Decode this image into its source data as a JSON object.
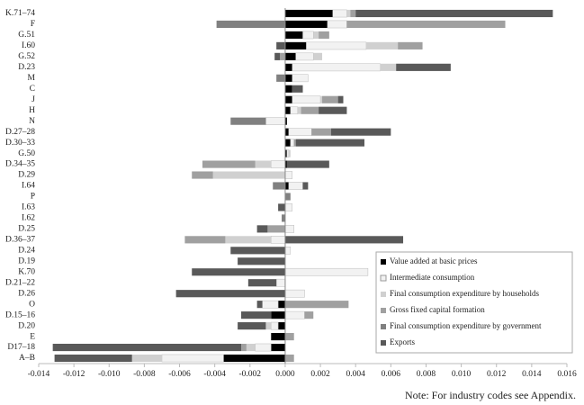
{
  "chart_data": {
    "type": "bar",
    "orientation": "horizontal",
    "stacked": true,
    "categories": [
      "K.71–74",
      "F",
      "G.51",
      "I.60",
      "G.52",
      "D.23",
      "M",
      "C",
      "J",
      "H",
      "N",
      "D.27–28",
      "D.30–33",
      "G.50",
      "D.34–35",
      "D.29",
      "I.64",
      "P",
      "I.63",
      "I.62",
      "D.25",
      "D.36–37",
      "D.24",
      "D.19",
      "K.70",
      "D.21–22",
      "D.26",
      "O",
      "D.15–16",
      "D.20",
      "E",
      "D17–18",
      "A–B"
    ],
    "series": [
      {
        "name": "Value added at basic prices",
        "color": "#000000",
        "values": [
          0.0027,
          0.0024,
          0.001,
          0.0012,
          0.0006,
          0.0004,
          0.0004,
          0.0004,
          0.0004,
          0.0003,
          0.0001,
          0.0002,
          0.0003,
          0.0001,
          0.0001,
          0,
          0.0002,
          0,
          0,
          0,
          0,
          0,
          0,
          0,
          0,
          0,
          0,
          -0.0004,
          -0.0008,
          -0.0004,
          -0.0008,
          -0.0008,
          -0.0035
        ]
      },
      {
        "name": "Intermediate consumption",
        "color": "#f2f2f2",
        "values": [
          0.0008,
          0.0011,
          0.0006,
          0.0034,
          0.001,
          0.005,
          0.0009,
          0,
          0.0016,
          0.0004,
          -0.0011,
          0.0013,
          0.0002,
          0.0001,
          -0.0008,
          0.0004,
          0.0008,
          0,
          0.0004,
          0,
          0.0005,
          -0.0008,
          0.0003,
          0,
          0.0047,
          -0.0005,
          0.0011,
          -0.0009,
          0.0011,
          -0.0004,
          0,
          -0.0009,
          -0.0035
        ]
      },
      {
        "name": "Final consumption expenditure by households",
        "color": "#d0d0d0",
        "values": [
          0.0002,
          0,
          0.0003,
          0.0018,
          0.0005,
          0.0009,
          0,
          0,
          0.0001,
          0.0002,
          0,
          0,
          0,
          0.0001,
          -0.0009,
          -0.0041,
          0,
          0,
          0,
          0,
          0,
          -0.0026,
          0,
          0,
          0,
          0,
          0,
          0,
          0,
          -0.0003,
          0,
          -0.0005,
          -0.0017
        ]
      },
      {
        "name": "Gross fixed capital formation",
        "color": "#a0a0a0",
        "values": [
          0.0003,
          0.009,
          0.0006,
          0.0014,
          -0.0003,
          0,
          0,
          0,
          0.0009,
          0.001,
          0,
          0.0011,
          0.0001,
          0,
          -0.003,
          -0.0012,
          0,
          0,
          0,
          0,
          -0.001,
          -0.0023,
          0,
          0,
          0,
          0,
          0,
          0.0036,
          0.0005,
          0,
          0.0005,
          -0.0003,
          0.0005
        ]
      },
      {
        "name": "Final consumption expenditure by government",
        "color": "#808080",
        "values": [
          0,
          -0.0039,
          0,
          0,
          0,
          0,
          -0.0005,
          0,
          0,
          0,
          -0.002,
          0,
          0,
          0,
          0,
          0,
          -0.0007,
          0.0003,
          0,
          -0.0002,
          0,
          0,
          0,
          0,
          0,
          0,
          0,
          0,
          0,
          0,
          0,
          0,
          0
        ]
      },
      {
        "name": "Exports",
        "color": "#595959",
        "values": [
          0.0112,
          0,
          0,
          -0.0005,
          -0.0003,
          0.0031,
          0,
          0.0006,
          0.0003,
          0.0016,
          0,
          0.0034,
          0.0039,
          0,
          0.0024,
          0,
          0.0003,
          0,
          -0.0004,
          0,
          -0.0006,
          0.0067,
          -0.0031,
          -0.0027,
          -0.0053,
          -0.0016,
          -0.0062,
          -0.0003,
          -0.0017,
          -0.0016,
          0,
          -0.0107,
          -0.0044
        ]
      }
    ],
    "xlim": [
      -0.014,
      0.016
    ],
    "xticks": [
      -0.014,
      -0.012,
      {
        "value": -0.01,
        "label": "-0.010"
      },
      -0.008,
      -0.006,
      -0.004,
      -0.002,
      {
        "value": 0,
        "label": "0.000"
      },
      0.002,
      0.004,
      0.006,
      0.008,
      {
        "value": 0.01,
        "label": "0.010"
      },
      0.012,
      0.014,
      0.016
    ],
    "legend": "lower right",
    "note": "Note: For industry codes see Appendix."
  }
}
